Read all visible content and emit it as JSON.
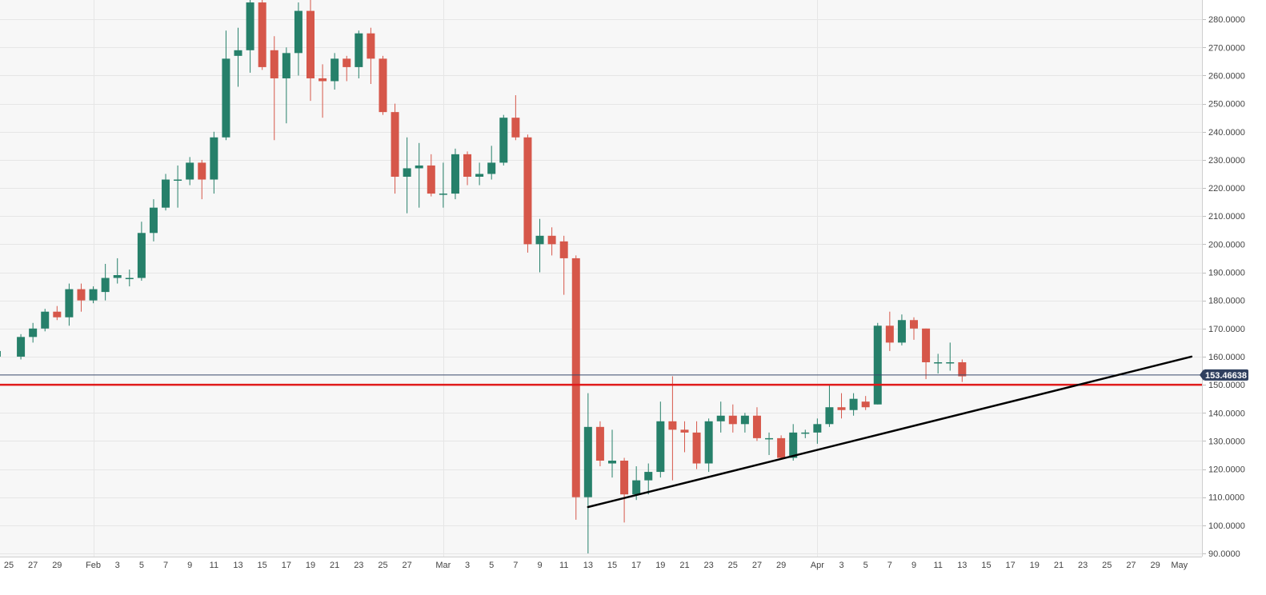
{
  "chart_data": {
    "type": "candlestick",
    "title": "",
    "xlabel": "",
    "ylabel": "",
    "ylim": [
      90,
      285
    ],
    "grid": true,
    "colors": {
      "up": "#26806a",
      "down": "#d6574a",
      "background": "#f7f7f7",
      "grid": "#e6e6e6",
      "axis_text": "#444444",
      "current_price_line": "#3a4a6b",
      "current_price_badge": "#2f3f5e",
      "support_line": "#e01b1b",
      "trendline": "#000000"
    },
    "y_ticks": [
      "90.0000",
      "100.0000",
      "110.0000",
      "120.0000",
      "130.0000",
      "140.0000",
      "150.0000",
      "160.0000",
      "170.0000",
      "180.0000",
      "190.0000",
      "200.0000",
      "210.0000",
      "220.0000",
      "230.0000",
      "240.0000",
      "250.0000",
      "260.0000",
      "270.0000",
      "280.0000"
    ],
    "x_ticks": [
      {
        "i": 0,
        "label": "25"
      },
      {
        "i": 2,
        "label": "27"
      },
      {
        "i": 4,
        "label": "29"
      },
      {
        "i": 7,
        "label": "Feb"
      },
      {
        "i": 9,
        "label": "3"
      },
      {
        "i": 11,
        "label": "5"
      },
      {
        "i": 13,
        "label": "7"
      },
      {
        "i": 15,
        "label": "9"
      },
      {
        "i": 17,
        "label": "11"
      },
      {
        "i": 19,
        "label": "13"
      },
      {
        "i": 21,
        "label": "15"
      },
      {
        "i": 23,
        "label": "17"
      },
      {
        "i": 25,
        "label": "19"
      },
      {
        "i": 27,
        "label": "21"
      },
      {
        "i": 29,
        "label": "23"
      },
      {
        "i": 31,
        "label": "25"
      },
      {
        "i": 33,
        "label": "27"
      },
      {
        "i": 36,
        "label": "Mar"
      },
      {
        "i": 38,
        "label": "3"
      },
      {
        "i": 40,
        "label": "5"
      },
      {
        "i": 42,
        "label": "7"
      },
      {
        "i": 44,
        "label": "9"
      },
      {
        "i": 46,
        "label": "11"
      },
      {
        "i": 48,
        "label": "13"
      },
      {
        "i": 50,
        "label": "15"
      },
      {
        "i": 52,
        "label": "17"
      },
      {
        "i": 54,
        "label": "19"
      },
      {
        "i": 56,
        "label": "21"
      },
      {
        "i": 58,
        "label": "23"
      },
      {
        "i": 60,
        "label": "25"
      },
      {
        "i": 62,
        "label": "27"
      },
      {
        "i": 64,
        "label": "29"
      },
      {
        "i": 67,
        "label": "Apr"
      },
      {
        "i": 69,
        "label": "3"
      },
      {
        "i": 71,
        "label": "5"
      },
      {
        "i": 73,
        "label": "7"
      },
      {
        "i": 75,
        "label": "9"
      },
      {
        "i": 77,
        "label": "11"
      },
      {
        "i": 79,
        "label": "13"
      },
      {
        "i": 81,
        "label": "15"
      },
      {
        "i": 83,
        "label": "17"
      },
      {
        "i": 85,
        "label": "19"
      },
      {
        "i": 87,
        "label": "21"
      },
      {
        "i": 89,
        "label": "23"
      },
      {
        "i": 91,
        "label": "25"
      },
      {
        "i": 93,
        "label": "27"
      },
      {
        "i": 95,
        "label": "29"
      },
      {
        "i": 97,
        "label": "May"
      }
    ],
    "x_grid_ticks": [
      7,
      36,
      67
    ],
    "candles": [
      {
        "i": -1,
        "o": 160,
        "h": 163,
        "l": 157,
        "c": 162
      },
      {
        "i": 1,
        "o": 160,
        "h": 168,
        "l": 159,
        "c": 167
      },
      {
        "i": 2,
        "o": 167,
        "h": 172,
        "l": 165,
        "c": 170
      },
      {
        "i": 3,
        "o": 170,
        "h": 177,
        "l": 169,
        "c": 176
      },
      {
        "i": 4,
        "o": 176,
        "h": 178,
        "l": 173,
        "c": 174
      },
      {
        "i": 5,
        "o": 174,
        "h": 186,
        "l": 171,
        "c": 184
      },
      {
        "i": 6,
        "o": 184,
        "h": 186,
        "l": 176,
        "c": 180
      },
      {
        "i": 7,
        "o": 180,
        "h": 185,
        "l": 179,
        "c": 184
      },
      {
        "i": 8,
        "o": 183,
        "h": 193,
        "l": 180,
        "c": 188
      },
      {
        "i": 9,
        "o": 188,
        "h": 195,
        "l": 186,
        "c": 189
      },
      {
        "i": 10,
        "o": 188,
        "h": 191,
        "l": 185,
        "c": 188
      },
      {
        "i": 11,
        "o": 188,
        "h": 208,
        "l": 187,
        "c": 204
      },
      {
        "i": 12,
        "o": 204,
        "h": 216,
        "l": 201,
        "c": 213
      },
      {
        "i": 13,
        "o": 213,
        "h": 225,
        "l": 212,
        "c": 223
      },
      {
        "i": 14,
        "o": 223,
        "h": 228,
        "l": 213,
        "c": 223
      },
      {
        "i": 15,
        "o": 223,
        "h": 231,
        "l": 221,
        "c": 229
      },
      {
        "i": 16,
        "o": 229,
        "h": 230,
        "l": 216,
        "c": 223
      },
      {
        "i": 17,
        "o": 223,
        "h": 240,
        "l": 218,
        "c": 238
      },
      {
        "i": 18,
        "o": 238,
        "h": 276,
        "l": 237,
        "c": 266
      },
      {
        "i": 19,
        "o": 267,
        "h": 277,
        "l": 256,
        "c": 269
      },
      {
        "i": 20,
        "o": 269,
        "h": 287,
        "l": 261,
        "c": 286
      },
      {
        "i": 21,
        "o": 286,
        "h": 287,
        "l": 262,
        "c": 263
      },
      {
        "i": 22,
        "o": 269,
        "h": 274,
        "l": 237,
        "c": 259
      },
      {
        "i": 23,
        "o": 259,
        "h": 270,
        "l": 243,
        "c": 268
      },
      {
        "i": 24,
        "o": 268,
        "h": 286,
        "l": 260,
        "c": 283
      },
      {
        "i": 25,
        "o": 283,
        "h": 287,
        "l": 251,
        "c": 259
      },
      {
        "i": 26,
        "o": 259,
        "h": 264,
        "l": 245,
        "c": 258
      },
      {
        "i": 27,
        "o": 258,
        "h": 268,
        "l": 255,
        "c": 266
      },
      {
        "i": 28,
        "o": 266,
        "h": 267,
        "l": 258,
        "c": 263
      },
      {
        "i": 29,
        "o": 263,
        "h": 276,
        "l": 259,
        "c": 275
      },
      {
        "i": 30,
        "o": 275,
        "h": 277,
        "l": 257,
        "c": 266
      },
      {
        "i": 31,
        "o": 266,
        "h": 267,
        "l": 246,
        "c": 247
      },
      {
        "i": 32,
        "o": 247,
        "h": 250,
        "l": 218,
        "c": 224
      },
      {
        "i": 33,
        "o": 224,
        "h": 238,
        "l": 211,
        "c": 227
      },
      {
        "i": 34,
        "o": 227,
        "h": 236,
        "l": 213,
        "c": 228
      },
      {
        "i": 35,
        "o": 228,
        "h": 232,
        "l": 217,
        "c": 218
      },
      {
        "i": 36,
        "o": 218,
        "h": 229,
        "l": 213,
        "c": 218
      },
      {
        "i": 37,
        "o": 218,
        "h": 234,
        "l": 216,
        "c": 232
      },
      {
        "i": 38,
        "o": 232,
        "h": 233,
        "l": 221,
        "c": 224
      },
      {
        "i": 39,
        "o": 224,
        "h": 229,
        "l": 221,
        "c": 225
      },
      {
        "i": 40,
        "o": 225,
        "h": 235,
        "l": 223,
        "c": 229
      },
      {
        "i": 41,
        "o": 229,
        "h": 246,
        "l": 228,
        "c": 245
      },
      {
        "i": 42,
        "o": 245,
        "h": 253,
        "l": 237,
        "c": 238
      },
      {
        "i": 43,
        "o": 238,
        "h": 239,
        "l": 197,
        "c": 200
      },
      {
        "i": 44,
        "o": 200,
        "h": 209,
        "l": 190,
        "c": 203
      },
      {
        "i": 45,
        "o": 203,
        "h": 206,
        "l": 196,
        "c": 200
      },
      {
        "i": 46,
        "o": 201,
        "h": 203,
        "l": 182,
        "c": 195
      },
      {
        "i": 47,
        "o": 195,
        "h": 196,
        "l": 102,
        "c": 110
      },
      {
        "i": 48,
        "o": 110,
        "h": 147,
        "l": 90,
        "c": 135
      },
      {
        "i": 49,
        "o": 135,
        "h": 137,
        "l": 121,
        "c": 123
      },
      {
        "i": 50,
        "o": 122,
        "h": 134,
        "l": 117,
        "c": 123
      },
      {
        "i": 51,
        "o": 123,
        "h": 124,
        "l": 101,
        "c": 111
      },
      {
        "i": 52,
        "o": 111,
        "h": 121,
        "l": 109,
        "c": 116
      },
      {
        "i": 53,
        "o": 116,
        "h": 122,
        "l": 111,
        "c": 119
      },
      {
        "i": 54,
        "o": 119,
        "h": 144,
        "l": 117,
        "c": 137
      },
      {
        "i": 55,
        "o": 137,
        "h": 153,
        "l": 116,
        "c": 134
      },
      {
        "i": 56,
        "o": 134,
        "h": 137,
        "l": 126,
        "c": 133
      },
      {
        "i": 57,
        "o": 133,
        "h": 137,
        "l": 120,
        "c": 122
      },
      {
        "i": 58,
        "o": 122,
        "h": 138,
        "l": 119,
        "c": 137
      },
      {
        "i": 59,
        "o": 137,
        "h": 144,
        "l": 133,
        "c": 139
      },
      {
        "i": 60,
        "o": 139,
        "h": 143,
        "l": 133,
        "c": 136
      },
      {
        "i": 61,
        "o": 136,
        "h": 140,
        "l": 133,
        "c": 139
      },
      {
        "i": 62,
        "o": 139,
        "h": 142,
        "l": 130,
        "c": 131
      },
      {
        "i": 63,
        "o": 131,
        "h": 133,
        "l": 125,
        "c": 131
      },
      {
        "i": 64,
        "o": 131,
        "h": 132,
        "l": 124,
        "c": 124
      },
      {
        "i": 65,
        "o": 124,
        "h": 136,
        "l": 123,
        "c": 133
      },
      {
        "i": 66,
        "o": 133,
        "h": 134,
        "l": 131,
        "c": 133
      },
      {
        "i": 67,
        "o": 133,
        "h": 138,
        "l": 129,
        "c": 136
      },
      {
        "i": 68,
        "o": 136,
        "h": 150,
        "l": 135,
        "c": 142
      },
      {
        "i": 69,
        "o": 142,
        "h": 147,
        "l": 138,
        "c": 141
      },
      {
        "i": 70,
        "o": 141,
        "h": 147,
        "l": 139,
        "c": 145
      },
      {
        "i": 71,
        "o": 144,
        "h": 146,
        "l": 141,
        "c": 142
      },
      {
        "i": 72,
        "o": 143,
        "h": 172,
        "l": 143,
        "c": 171
      },
      {
        "i": 73,
        "o": 171,
        "h": 176,
        "l": 162,
        "c": 165
      },
      {
        "i": 74,
        "o": 165,
        "h": 175,
        "l": 164,
        "c": 173
      },
      {
        "i": 75,
        "o": 173,
        "h": 174,
        "l": 166,
        "c": 170
      },
      {
        "i": 76,
        "o": 170,
        "h": 170,
        "l": 152,
        "c": 158
      },
      {
        "i": 77,
        "o": 158,
        "h": 161,
        "l": 154,
        "c": 158
      },
      {
        "i": 78,
        "o": 158,
        "h": 165,
        "l": 155,
        "c": 158
      },
      {
        "i": 79,
        "o": 158,
        "h": 159,
        "l": 151,
        "c": 153
      }
    ],
    "current_price": 153.46638,
    "current_price_label": "153.46638",
    "support_level": 150,
    "trendline": {
      "from": {
        "i": 48,
        "v": 106.5
      },
      "to": {
        "i": 98,
        "v": 160
      }
    }
  }
}
